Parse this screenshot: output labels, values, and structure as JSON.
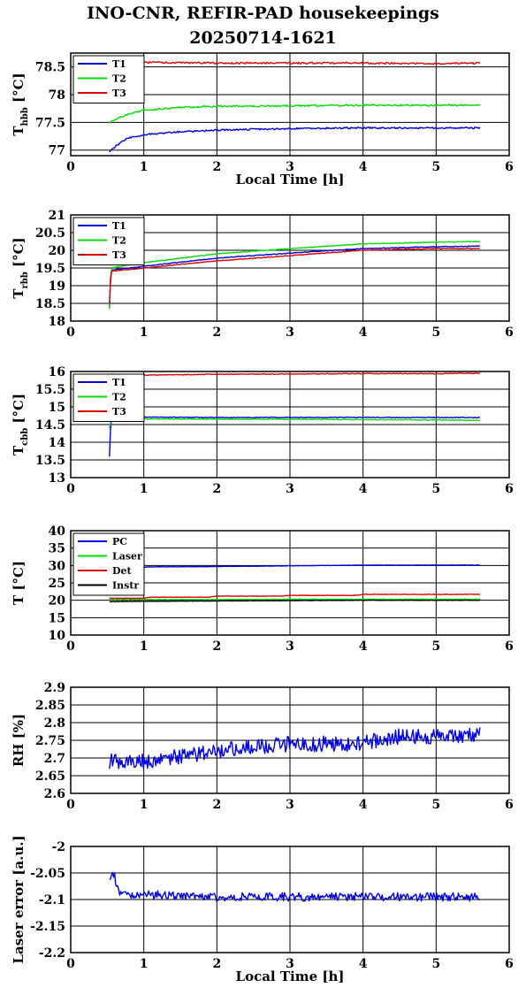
{
  "page": {
    "title_line1": "INO-CNR, REFIR-PAD housekeepings",
    "title_line2": "20250714-1621"
  },
  "colors": {
    "blue": "#0000dd",
    "green": "#00dd00",
    "red": "#dd0000",
    "black": "#000000"
  },
  "chart_data": [
    {
      "type": "line",
      "ylabel": "T",
      "ylabel_sub": "hbb",
      "ylabel_unit": "[°C]",
      "xlabel": "Local Time [h]",
      "xlim": [
        0,
        6
      ],
      "ylim": [
        76.9,
        78.75
      ],
      "xticks": [
        0,
        1,
        2,
        3,
        4,
        5,
        6
      ],
      "yticks": [
        77,
        77.5,
        78,
        78.5
      ],
      "grid": true,
      "legend": "top-left",
      "series": [
        {
          "name": "T1",
          "color": "#0000dd",
          "noise": 0.015,
          "x": [
            0.53,
            0.6,
            0.7,
            0.8,
            1.0,
            1.5,
            2.0,
            3.0,
            4.0,
            5.0,
            5.6
          ],
          "y": [
            76.98,
            77.05,
            77.15,
            77.22,
            77.28,
            77.33,
            77.36,
            77.39,
            77.4,
            77.4,
            77.4
          ]
        },
        {
          "name": "T2",
          "color": "#00dd00",
          "noise": 0.015,
          "x": [
            0.53,
            0.6,
            0.8,
            1.0,
            1.5,
            2.0,
            3.0,
            4.0,
            5.0,
            5.6
          ],
          "y": [
            77.5,
            77.55,
            77.65,
            77.72,
            77.77,
            77.79,
            77.8,
            77.81,
            77.81,
            77.81
          ]
        },
        {
          "name": "T3",
          "color": "#dd0000",
          "noise": 0.015,
          "x": [
            0.53,
            1.0,
            2.0,
            3.0,
            4.0,
            5.0,
            5.6
          ],
          "y": [
            78.58,
            78.58,
            78.57,
            78.57,
            78.57,
            78.56,
            78.57
          ]
        }
      ]
    },
    {
      "type": "line",
      "ylabel": "T",
      "ylabel_sub": "rbb",
      "ylabel_unit": "[°C]",
      "xlabel": "",
      "xlim": [
        0,
        6
      ],
      "ylim": [
        18,
        21
      ],
      "xticks": [
        0,
        1,
        2,
        3,
        4,
        5,
        6
      ],
      "yticks": [
        18,
        18.5,
        19,
        19.5,
        20,
        20.5,
        21
      ],
      "grid": true,
      "legend": "top-left",
      "series": [
        {
          "name": "T1",
          "color": "#0000dd",
          "noise": 0.01,
          "x": [
            0.53,
            0.545,
            0.56,
            0.6,
            1.0,
            2.0,
            3.0,
            4.0,
            5.0,
            5.6
          ],
          "y": [
            18.4,
            19.1,
            19.45,
            19.45,
            19.55,
            19.78,
            19.92,
            20.05,
            20.1,
            20.12
          ]
        },
        {
          "name": "T2",
          "color": "#00dd00",
          "noise": 0.01,
          "x": [
            0.53,
            0.545,
            0.56,
            0.6,
            1.0,
            2.0,
            3.0,
            4.0,
            5.0,
            5.6
          ],
          "y": [
            18.35,
            19.2,
            19.5,
            19.52,
            19.65,
            19.9,
            20.05,
            20.18,
            20.23,
            20.25
          ]
        },
        {
          "name": "T3",
          "color": "#dd0000",
          "noise": 0.01,
          "x": [
            0.53,
            0.545,
            0.56,
            0.6,
            1.0,
            2.0,
            3.0,
            4.0,
            5.0,
            5.6
          ],
          "y": [
            18.5,
            19.25,
            19.42,
            19.42,
            19.5,
            19.7,
            19.85,
            20.0,
            20.05,
            20.05
          ]
        }
      ]
    },
    {
      "type": "line",
      "ylabel": "T",
      "ylabel_sub": "cbb",
      "ylabel_unit": "[°C]",
      "xlabel": "",
      "xlim": [
        0,
        6
      ],
      "ylim": [
        13,
        16
      ],
      "xticks": [
        0,
        1,
        2,
        3,
        4,
        5,
        6
      ],
      "yticks": [
        13,
        13.5,
        14,
        14.5,
        15,
        15.5,
        16
      ],
      "grid": true,
      "legend": "top-left",
      "series": [
        {
          "name": "T1",
          "color": "#0000dd",
          "noise": 0.01,
          "x": [
            0.53,
            0.545,
            0.56,
            0.6,
            1.0,
            2.0,
            3.0,
            4.0,
            5.0,
            5.6
          ],
          "y": [
            13.6,
            14.4,
            14.72,
            14.72,
            14.71,
            14.7,
            14.7,
            14.7,
            14.7,
            14.7
          ]
        },
        {
          "name": "T2",
          "color": "#00dd00",
          "noise": 0.01,
          "x": [
            0.53,
            0.545,
            0.56,
            0.6,
            1.0,
            2.0,
            3.0,
            4.0,
            5.0,
            5.6
          ],
          "y": [
            14.4,
            14.55,
            14.68,
            14.68,
            14.66,
            14.65,
            14.65,
            14.64,
            14.63,
            14.62
          ]
        },
        {
          "name": "T3",
          "color": "#dd0000",
          "noise": 0.01,
          "x": [
            0.53,
            1.0,
            2.0,
            3.0,
            4.0,
            5.0,
            5.6
          ],
          "y": [
            15.92,
            15.9,
            15.92,
            15.93,
            15.94,
            15.94,
            15.95
          ]
        }
      ]
    },
    {
      "type": "line",
      "ylabel": "T [°C]",
      "ylabel_sub": "",
      "ylabel_unit": "",
      "xlabel": "",
      "xlim": [
        0,
        6
      ],
      "ylim": [
        10,
        40
      ],
      "xticks": [
        0,
        1,
        2,
        3,
        4,
        5,
        6
      ],
      "yticks": [
        10,
        15,
        20,
        25,
        30,
        35,
        40
      ],
      "grid": true,
      "legend": "top-left",
      "series": [
        {
          "name": "PC",
          "color": "#0000dd",
          "noise": 0.05,
          "x": [
            0.53,
            0.9,
            1.0,
            1.1,
            2.0,
            3.0,
            4.0,
            5.0,
            5.6
          ],
          "y": [
            29.0,
            29.1,
            29.5,
            29.6,
            29.7,
            29.9,
            30.1,
            30.1,
            30.1
          ]
        },
        {
          "name": "Laser",
          "color": "#00dd00",
          "noise": 0.05,
          "x": [
            0.53,
            1.0,
            2.0,
            3.0,
            4.0,
            5.0,
            5.6
          ],
          "y": [
            20.2,
            20.2,
            20.2,
            20.3,
            20.3,
            20.3,
            20.3
          ]
        },
        {
          "name": "Det",
          "color": "#dd0000",
          "noise": 0.05,
          "x": [
            0.53,
            1.0,
            1.1,
            1.9,
            2.0,
            2.9,
            3.0,
            3.9,
            4.0,
            5.6
          ],
          "y": [
            20.6,
            20.6,
            20.9,
            20.9,
            21.2,
            21.2,
            21.4,
            21.4,
            21.7,
            21.7
          ]
        },
        {
          "name": "Instr",
          "color": "#000000",
          "noise": 0.05,
          "x": [
            0.53,
            1.0,
            2.0,
            3.0,
            4.0,
            5.0,
            5.6
          ],
          "y": [
            19.6,
            19.7,
            19.8,
            19.9,
            20.0,
            20.0,
            20.0
          ]
        }
      ]
    },
    {
      "type": "line",
      "ylabel": "RH [%]",
      "ylabel_sub": "",
      "ylabel_unit": "",
      "xlabel": "",
      "xlim": [
        0,
        6
      ],
      "ylim": [
        2.6,
        2.9
      ],
      "xticks": [
        0,
        1,
        2,
        3,
        4,
        5,
        6
      ],
      "yticks": [
        2.6,
        2.65,
        2.7,
        2.75,
        2.8,
        2.85,
        2.9
      ],
      "grid": true,
      "legend": "none",
      "series": [
        {
          "name": "",
          "color": "#0000dd",
          "noise": 0.022,
          "x": [
            0.53,
            1.0,
            2.0,
            3.0,
            4.0,
            4.4,
            5.0,
            5.6
          ],
          "y": [
            2.69,
            2.69,
            2.72,
            2.74,
            2.74,
            2.76,
            2.76,
            2.77
          ]
        }
      ]
    },
    {
      "type": "line",
      "ylabel": "Laser error [a.u.]",
      "ylabel_sub": "",
      "ylabel_unit": "",
      "xlabel": "Local Time [h]",
      "xlim": [
        0,
        6
      ],
      "ylim": [
        -2.2,
        -2.0
      ],
      "xticks": [
        0,
        1,
        2,
        3,
        4,
        5,
        6
      ],
      "yticks": [
        -2.2,
        -2.15,
        -2.1,
        -2.05,
        -2
      ],
      "grid": true,
      "legend": "none",
      "series": [
        {
          "name": "",
          "color": "#0000dd",
          "noise": 0.008,
          "x": [
            0.53,
            0.6,
            0.65,
            0.7,
            1.0,
            2.0,
            3.0,
            4.0,
            5.0,
            5.6
          ],
          "y": [
            -2.055,
            -2.055,
            -2.085,
            -2.09,
            -2.09,
            -2.095,
            -2.095,
            -2.095,
            -2.095,
            -2.095
          ]
        }
      ]
    }
  ]
}
